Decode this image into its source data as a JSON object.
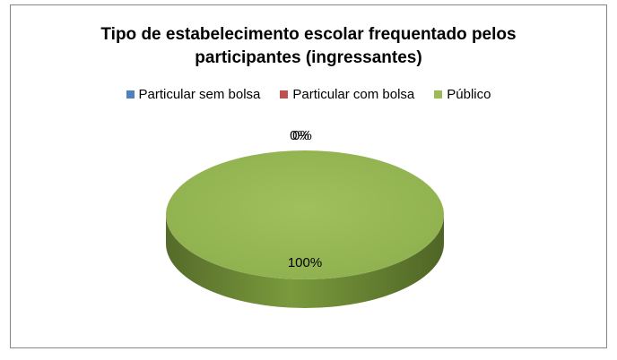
{
  "chart_data": {
    "type": "pie",
    "title_lines": [
      "Tipo de estabelecimento escolar frequentado pelos",
      "participantes (ingressantes)"
    ],
    "categories": [
      "Particular sem bolsa",
      "Particular com bolsa",
      "Público"
    ],
    "values": [
      0,
      0,
      100
    ],
    "data_labels": [
      "0%",
      "0%",
      "100%"
    ],
    "colors": [
      "#4f81bd",
      "#c0504d",
      "#9bbb59"
    ],
    "legend_position": "top",
    "style": "3d"
  }
}
